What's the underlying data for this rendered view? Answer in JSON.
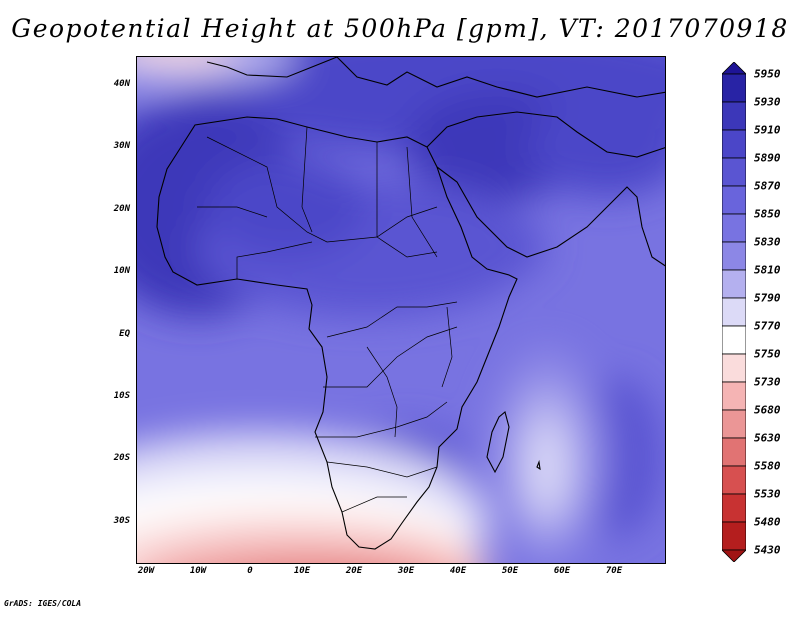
{
  "title": "Geopotential Height at 500hPa [gpm], VT: 2017070918",
  "credit": "GrADS: IGES/COLA",
  "lat_labels": [
    "40N",
    "30N",
    "20N",
    "10N",
    "EQ",
    "10S",
    "20S",
    "30S"
  ],
  "lon_labels": [
    "20W",
    "10W",
    "0",
    "10E",
    "20E",
    "30E",
    "40E",
    "50E",
    "60E",
    "70E"
  ],
  "colorbar": {
    "levels": [
      "5950",
      "5930",
      "5910",
      "5890",
      "5870",
      "5850",
      "5830",
      "5810",
      "5790",
      "5770",
      "5750",
      "5730",
      "5680",
      "5630",
      "5580",
      "5530",
      "5480",
      "5430"
    ],
    "colors": [
      "#1e1496",
      "#2823a5",
      "#3c37b9",
      "#4b46c8",
      "#5a55d2",
      "#6964dc",
      "#7873e1",
      "#8c87e6",
      "#b4b0ef",
      "#dcdaf7",
      "#ffffff",
      "#fadcdc",
      "#f5b4b4",
      "#eb9696",
      "#e17373",
      "#d75050",
      "#c83232",
      "#b41e1e",
      "#a01414"
    ]
  }
}
